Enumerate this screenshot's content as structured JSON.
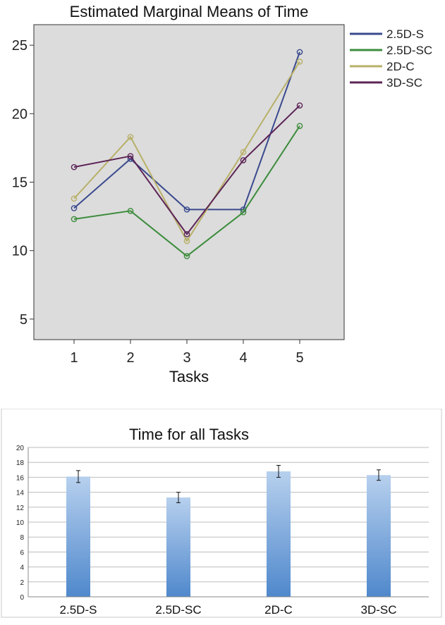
{
  "chart_data": [
    {
      "type": "line",
      "title": "Estimated Marginal Means of Time",
      "xlabel": "Tasks",
      "ylabel": "",
      "categories": [
        "1",
        "2",
        "3",
        "4",
        "5"
      ],
      "ylim": [
        3.5,
        26.5
      ],
      "yticks": [
        "5",
        "10",
        "15",
        "20",
        "25"
      ],
      "grid": false,
      "legend_position": "right",
      "background": "#dcdcdc",
      "series": [
        {
          "name": "2.5D-S",
          "color": "#3a4a8e",
          "values": [
            13.1,
            16.7,
            13.0,
            13.0,
            24.5
          ]
        },
        {
          "name": "2.5D-SC",
          "color": "#3c8c3c",
          "values": [
            12.3,
            12.9,
            9.6,
            12.8,
            19.1
          ]
        },
        {
          "name": "2D-C",
          "color": "#b8b068",
          "values": [
            13.8,
            18.3,
            10.7,
            17.2,
            23.8
          ]
        },
        {
          "name": "3D-SC",
          "color": "#5c2456",
          "values": [
            16.1,
            16.9,
            11.2,
            16.6,
            20.6
          ]
        }
      ]
    },
    {
      "type": "bar",
      "title": "Time for all Tasks",
      "xlabel": "",
      "ylabel": "",
      "categories": [
        "2.5D-S",
        "2.5D-SC",
        "2D-C",
        "3D-SC"
      ],
      "values": [
        16.1,
        13.3,
        16.8,
        16.3
      ],
      "error": [
        0.8,
        0.7,
        0.8,
        0.7
      ],
      "ylim": [
        0,
        20
      ],
      "yticks": [
        "0",
        "2",
        "4",
        "6",
        "8",
        "10",
        "12",
        "14",
        "16",
        "18",
        "20"
      ],
      "grid": true,
      "bar_color": "#5a8fd0"
    }
  ]
}
